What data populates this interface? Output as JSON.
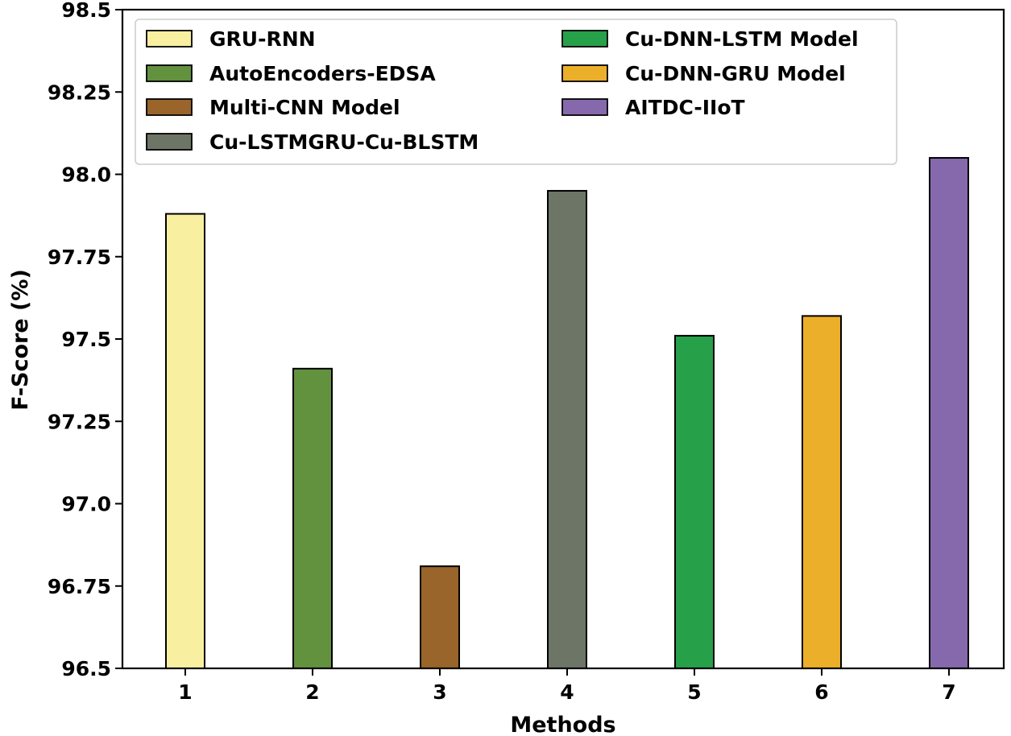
{
  "chart_data": {
    "type": "bar",
    "categories": [
      "1",
      "2",
      "3",
      "4",
      "5",
      "6",
      "7"
    ],
    "values": [
      97.88,
      97.41,
      96.81,
      97.95,
      97.51,
      97.57,
      98.05
    ],
    "series_names": [
      "GRU-RNN",
      "AutoEncoders-EDSA",
      "Multi-CNN Model",
      "Cu-LSTMGRU-Cu-BLSTM",
      "Cu-DNN-LSTM Model",
      "Cu-DNN-GRU Model",
      "AITDC-IIoT"
    ],
    "colors": [
      "#f8f0a0",
      "#62923e",
      "#99652a",
      "#6d7566",
      "#27a04a",
      "#ecaf29",
      "#8669ad"
    ],
    "xlabel": "Methods",
    "ylabel": "F-Score (%)",
    "ylim": [
      96.5,
      98.5
    ],
    "yticks": [
      96.5,
      96.75,
      97.0,
      97.25,
      97.5,
      97.75,
      98.0,
      98.25,
      98.5
    ],
    "ytick_labels": [
      "96.5",
      "96.75",
      "97.0",
      "97.25",
      "97.5",
      "97.75",
      "98.0",
      "98.25",
      "98.5"
    ],
    "grid": false,
    "legend_position": "top-left"
  }
}
